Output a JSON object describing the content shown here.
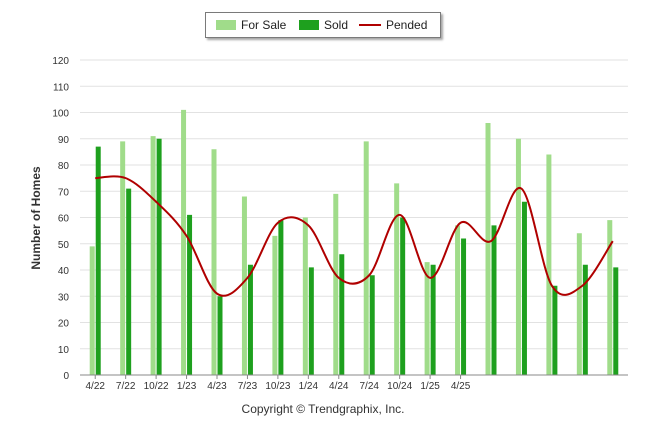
{
  "chart_data": {
    "type": "bar",
    "ylabel": "Number of Homes",
    "ylim": [
      0,
      120
    ],
    "yticks": [
      0,
      10,
      20,
      30,
      40,
      50,
      60,
      70,
      80,
      90,
      100,
      110,
      120
    ],
    "xtick_labels": [
      "4/22",
      "7/22",
      "10/22",
      "1/23",
      "4/23",
      "7/23",
      "10/23",
      "1/24",
      "4/24",
      "7/24",
      "10/24",
      "1/25",
      "4/25"
    ],
    "xtick_every": 3,
    "legend_position": "top-center",
    "grid": true,
    "series": [
      {
        "name": "For Sale",
        "type": "bar",
        "color": "#a0dc8a",
        "values": [
          49,
          89,
          91,
          101,
          86,
          68,
          53,
          60,
          69,
          89,
          73,
          43,
          57,
          96,
          90,
          84,
          54,
          59
        ]
      },
      {
        "name": "Sold",
        "type": "bar",
        "color": "#1ea01e",
        "values": [
          87,
          71,
          90,
          61,
          30,
          42,
          59,
          41,
          46,
          38,
          60,
          42,
          52,
          57,
          66,
          34,
          42,
          41
        ]
      },
      {
        "name": "Pended",
        "type": "line",
        "color": "#b00000",
        "values": [
          75,
          75,
          66,
          53,
          31,
          37,
          58,
          57,
          37,
          38,
          61,
          37,
          58,
          51,
          71,
          34,
          34,
          51
        ]
      }
    ]
  },
  "legend": {
    "for_sale": "For Sale",
    "sold": "Sold",
    "pended": "Pended"
  },
  "footer": {
    "copyright": "Copyright © Trendgraphix, Inc."
  }
}
